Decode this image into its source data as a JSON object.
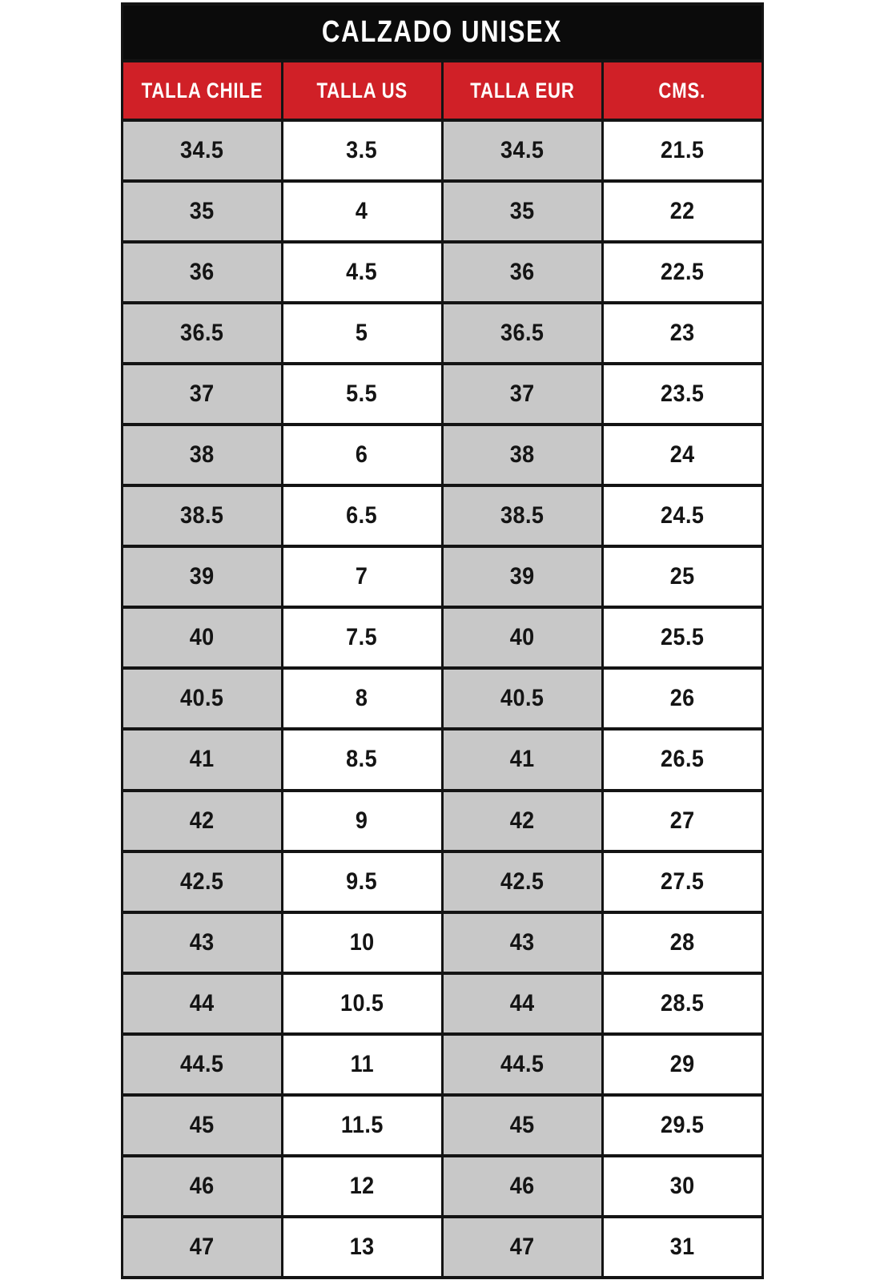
{
  "page": {
    "title": "CALZADO UNISEX"
  },
  "chart_data": {
    "type": "table",
    "title": "CALZADO UNISEX",
    "columns": [
      "TALLA CHILE",
      "TALLA US",
      "TALLA EUR",
      "CMS."
    ],
    "rows": [
      [
        "34.5",
        "3.5",
        "34.5",
        "21.5"
      ],
      [
        "35",
        "4",
        "35",
        "22"
      ],
      [
        "36",
        "4.5",
        "36",
        "22.5"
      ],
      [
        "36.5",
        "5",
        "36.5",
        "23"
      ],
      [
        "37",
        "5.5",
        "37",
        "23.5"
      ],
      [
        "38",
        "6",
        "38",
        "24"
      ],
      [
        "38.5",
        "6.5",
        "38.5",
        "24.5"
      ],
      [
        "39",
        "7",
        "39",
        "25"
      ],
      [
        "40",
        "7.5",
        "40",
        "25.5"
      ],
      [
        "40.5",
        "8",
        "40.5",
        "26"
      ],
      [
        "41",
        "8.5",
        "41",
        "26.5"
      ],
      [
        "42",
        "9",
        "42",
        "27"
      ],
      [
        "42.5",
        "9.5",
        "42.5",
        "27.5"
      ],
      [
        "43",
        "10",
        "43",
        "28"
      ],
      [
        "44",
        "10.5",
        "44",
        "28.5"
      ],
      [
        "44.5",
        "11",
        "44.5",
        "29"
      ],
      [
        "45",
        "11.5",
        "45",
        "29.5"
      ],
      [
        "46",
        "12",
        "46",
        "30"
      ],
      [
        "47",
        "13",
        "47",
        "31"
      ]
    ],
    "layout": {
      "shaded_columns": [
        0,
        2
      ],
      "grid": true,
      "title_position": "top"
    }
  },
  "colors": {
    "page_bg": "#ffffff",
    "title_bg": "#0b0b0b",
    "title_text": "#ffffff",
    "header_bg": "#d02027",
    "header_text": "#ffffff",
    "shaded_cell_bg": "#c8c8c8",
    "plain_cell_bg": "#ffffff",
    "cell_text": "#141414",
    "border": "#141414"
  }
}
